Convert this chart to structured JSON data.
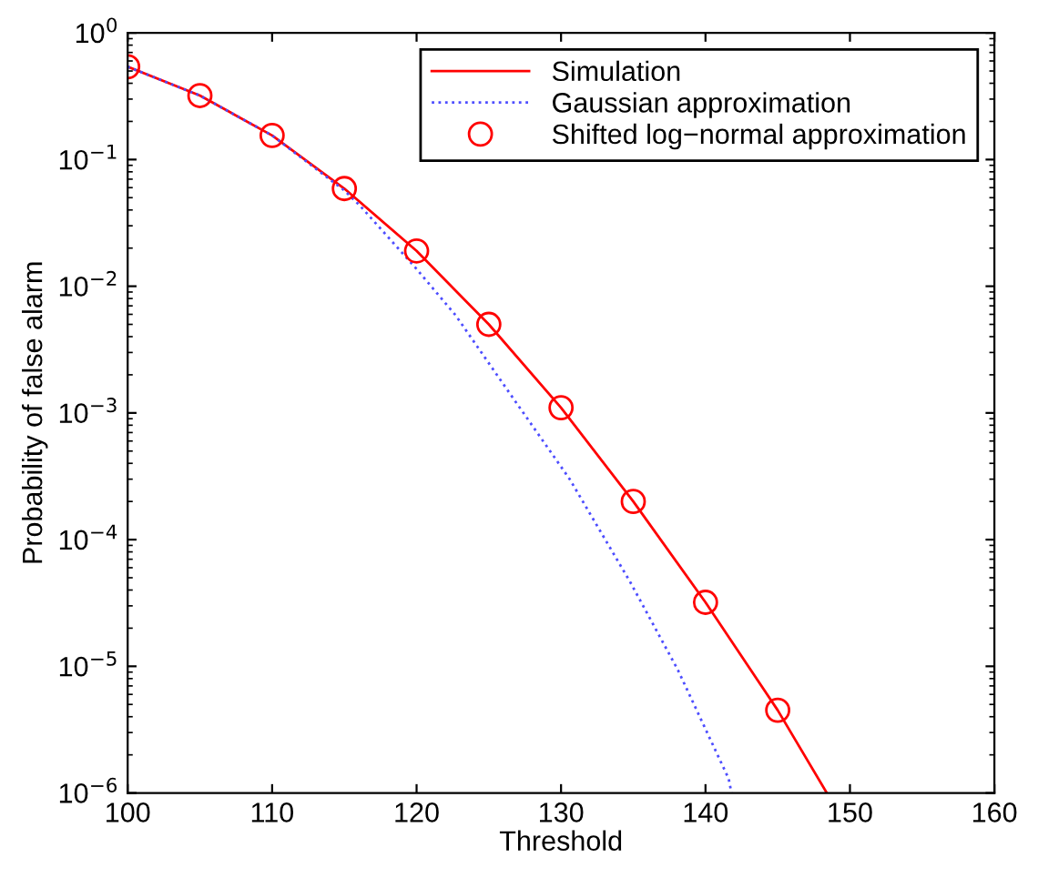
{
  "chart_data": {
    "type": "line",
    "xlabel": "Threshold",
    "ylabel": "Probability of false alarm",
    "log": "y",
    "xlim": [
      100,
      160
    ],
    "xticks": [
      100,
      110,
      120,
      130,
      140,
      150,
      160
    ],
    "ylim": [
      1e-06,
      1
    ],
    "yticks": [
      {
        "value": 1e-06,
        "label": "10$^{−6}$"
      },
      {
        "value": 1e-05,
        "label": "10$^{−5}$"
      },
      {
        "value": 0.0001,
        "label": "10$^{−4}$"
      },
      {
        "value": 0.001,
        "label": "10$^{−3}$"
      },
      {
        "value": 0.01,
        "label": "10$^{−2}$"
      },
      {
        "value": 0.1,
        "label": "10$^{−1}$"
      },
      {
        "value": 1,
        "label": "10$^{0}$"
      }
    ],
    "grid": false,
    "legend": "top right",
    "series": [
      {
        "name": "Simulation",
        "color": "#ff0000",
        "line_style": "solid",
        "marker": "none",
        "x": [
          100,
          105,
          110,
          115,
          120,
          125,
          130,
          135,
          140,
          145,
          148.4
        ],
        "values": [
          0.54,
          0.32,
          0.155,
          0.059,
          0.019,
          0.005,
          0.0011,
          0.0002,
          3.2e-05,
          4.5e-06,
          1e-06
        ]
      },
      {
        "name": "Gaussian approximation",
        "color": "#4d4dff",
        "line_style": "dotted",
        "marker": "none",
        "x": [
          100,
          105,
          110,
          115,
          116.1,
          119.9,
          122.7,
          126.5,
          130.6,
          134.8,
          138.1,
          141.6,
          141.8
        ],
        "values": [
          0.54,
          0.32,
          0.155,
          0.057,
          0.043,
          0.0141,
          0.0059,
          0.0014,
          0.0003,
          4.6e-05,
          9.3e-06,
          1.3e-06,
          1e-06
        ]
      },
      {
        "name": "Shifted log−normal approximation",
        "type": "scatter",
        "color": "#ff0000",
        "marker": "circle",
        "x": [
          100,
          105,
          110,
          115,
          120,
          125,
          130,
          135,
          140,
          145
        ],
        "values": [
          0.54,
          0.32,
          0.155,
          0.059,
          0.019,
          0.005,
          0.0011,
          0.0002,
          3.2e-05,
          4.5e-06
        ]
      }
    ]
  }
}
